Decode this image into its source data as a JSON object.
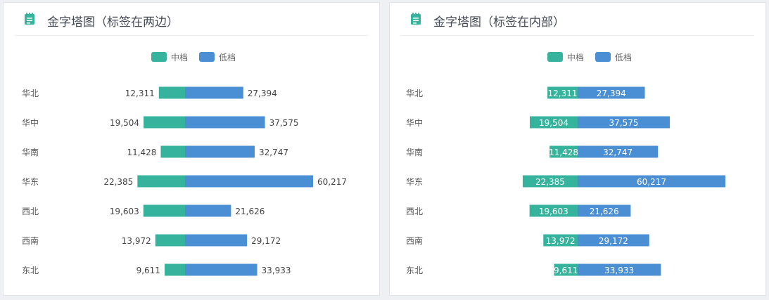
{
  "colors": {
    "mid": "#36b39d",
    "low": "#4a8fd4",
    "icon": "#36b39d",
    "category_text": "#555555",
    "value_text": "#444444"
  },
  "cards": [
    {
      "title": "金字塔图（标签在两边）",
      "icon": "notepad-icon",
      "label_mode": "outside"
    },
    {
      "title": "金字塔图（标签在内部）",
      "icon": "notepad-icon",
      "label_mode": "inside"
    }
  ],
  "chart_data": [
    {
      "type": "bar",
      "orientation": "horizontal-diverging",
      "title": "金字塔图（标签在两边）",
      "categories": [
        "华北",
        "华中",
        "华南",
        "华东",
        "西北",
        "西南",
        "东北"
      ],
      "series": [
        {
          "name": "中档",
          "color": "#36b39d",
          "values": [
            12311,
            19504,
            11428,
            22385,
            19603,
            13972,
            9611
          ]
        },
        {
          "name": "低档",
          "color": "#4a8fd4",
          "values": [
            27394,
            37575,
            32747,
            60217,
            21626,
            29172,
            33933
          ]
        }
      ],
      "data_labels": "outside",
      "legend_position": "top-center",
      "grid": false,
      "axes_visible": false
    },
    {
      "type": "bar",
      "orientation": "horizontal-diverging",
      "title": "金字塔图（标签在内部）",
      "categories": [
        "华北",
        "华中",
        "华南",
        "华东",
        "西北",
        "西南",
        "东北"
      ],
      "series": [
        {
          "name": "中档",
          "color": "#36b39d",
          "values": [
            12311,
            19504,
            11428,
            22385,
            19603,
            13972,
            9611
          ]
        },
        {
          "name": "低档",
          "color": "#4a8fd4",
          "values": [
            27394,
            37575,
            32747,
            60217,
            21626,
            29172,
            33933
          ]
        }
      ],
      "data_labels": "inside",
      "legend_position": "top-center",
      "grid": false,
      "axes_visible": false
    }
  ]
}
